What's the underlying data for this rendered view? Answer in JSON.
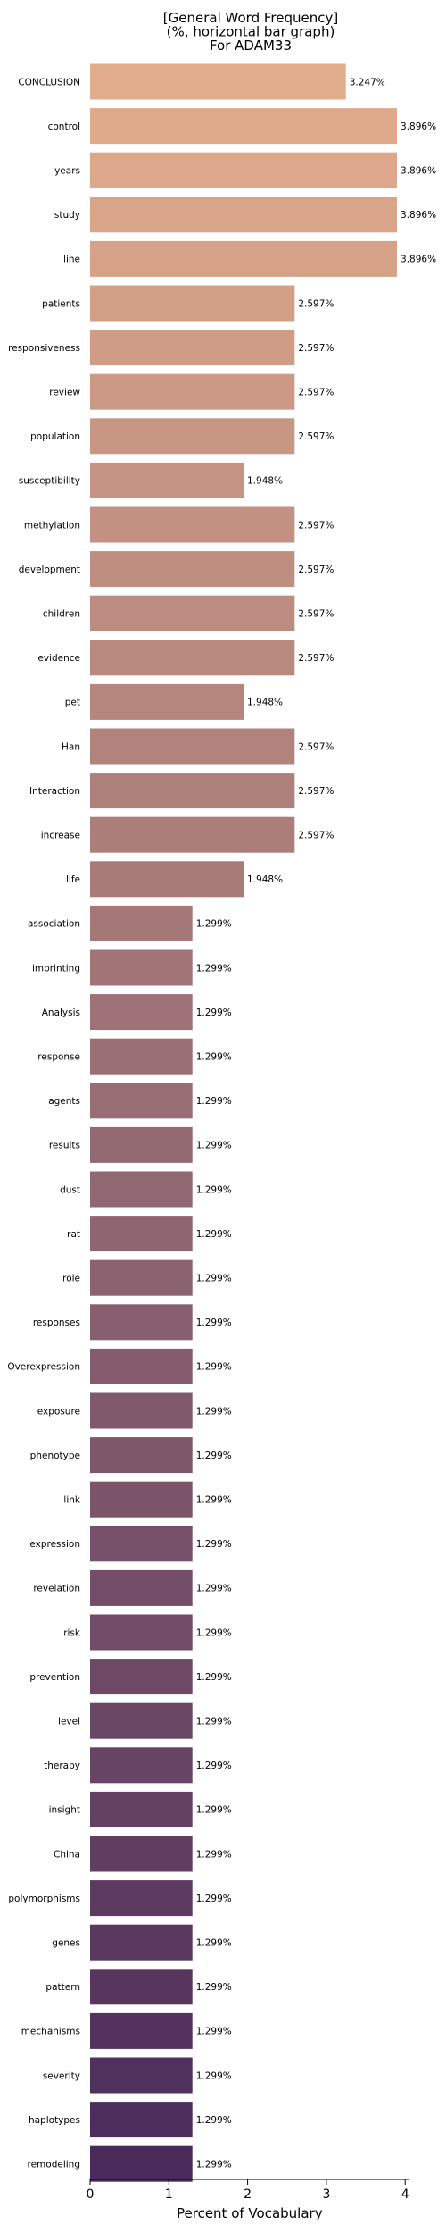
{
  "chart_data": {
    "type": "bar",
    "orientation": "horizontal",
    "title": [
      "[General Word Frequency]",
      "(%, horizontal bar graph)",
      "For ADAM33"
    ],
    "xlabel": "Percent of Vocabulary",
    "ylabel": "",
    "xlim": [
      0,
      4.05
    ],
    "xticks": [
      "0",
      "1",
      "2",
      "3",
      "4"
    ],
    "grid": false,
    "colormap": "flare",
    "categories": [
      "CONCLUSION",
      "control",
      "years",
      "study",
      "line",
      "patients",
      "responsiveness",
      "review",
      "population",
      "susceptibility",
      "methylation",
      "development",
      "children",
      "evidence",
      "pet",
      "Han",
      "Interaction",
      "increase",
      "life",
      "association",
      "imprinting",
      "Analysis",
      "response",
      "agents",
      "results",
      "dust",
      "rat",
      "role",
      "responses",
      "Overexpression",
      "exposure",
      "phenotype",
      "link",
      "expression",
      "revelation",
      "risk",
      "prevention",
      "level",
      "therapy",
      "insight",
      "China",
      "polymorphisms",
      "genes",
      "pattern",
      "mechanisms",
      "severity",
      "haplotypes",
      "remodeling"
    ],
    "values": [
      3.247,
      3.896,
      3.896,
      3.896,
      3.896,
      2.597,
      2.597,
      2.597,
      2.597,
      1.948,
      2.597,
      2.597,
      2.597,
      2.597,
      1.948,
      2.597,
      2.597,
      2.597,
      1.948,
      1.299,
      1.299,
      1.299,
      1.299,
      1.299,
      1.299,
      1.299,
      1.299,
      1.299,
      1.299,
      1.299,
      1.299,
      1.299,
      1.299,
      1.299,
      1.299,
      1.299,
      1.299,
      1.299,
      1.299,
      1.299,
      1.299,
      1.299,
      1.299,
      1.299,
      1.299,
      1.299,
      1.299,
      1.299
    ],
    "labels": [
      "3.247%",
      "3.896%",
      "3.896%",
      "3.896%",
      "3.896%",
      "2.597%",
      "2.597%",
      "2.597%",
      "2.597%",
      "1.948%",
      "2.597%",
      "2.597%",
      "2.597%",
      "2.597%",
      "1.948%",
      "2.597%",
      "2.597%",
      "2.597%",
      "1.948%",
      "1.299%",
      "1.299%",
      "1.299%",
      "1.299%",
      "1.299%",
      "1.299%",
      "1.299%",
      "1.299%",
      "1.299%",
      "1.299%",
      "1.299%",
      "1.299%",
      "1.299%",
      "1.299%",
      "1.299%",
      "1.299%",
      "1.299%",
      "1.299%",
      "1.299%",
      "1.299%",
      "1.299%",
      "1.299%",
      "1.299%",
      "1.299%",
      "1.299%",
      "1.299%",
      "1.299%",
      "1.299%",
      "1.299%"
    ],
    "color_start": "#e2ad8c",
    "color_end": "#4a2a5a"
  }
}
